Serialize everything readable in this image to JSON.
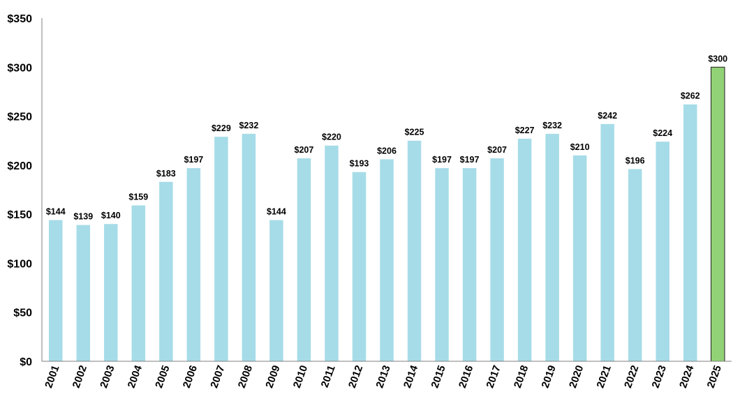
{
  "chart_data": {
    "type": "bar",
    "title": "",
    "xlabel": "",
    "ylabel": "",
    "ylim": [
      0,
      350
    ],
    "yticks": [
      0,
      50,
      100,
      150,
      200,
      250,
      300,
      350
    ],
    "ytick_labels": [
      "$0",
      "$50",
      "$100",
      "$150",
      "$200",
      "$250",
      "$300",
      "$350"
    ],
    "grid": false,
    "categories": [
      "2001",
      "2002",
      "2003",
      "2004",
      "2005",
      "2006",
      "2007",
      "2008",
      "2009",
      "2010",
      "2011",
      "2012",
      "2013",
      "2014",
      "2015",
      "2016",
      "2017",
      "2018",
      "2019",
      "2020",
      "2021",
      "2022",
      "2023",
      "2024",
      "2025"
    ],
    "values": [
      144,
      139,
      140,
      159,
      183,
      197,
      229,
      232,
      144,
      207,
      220,
      193,
      206,
      225,
      197,
      197,
      207,
      227,
      232,
      210,
      242,
      196,
      224,
      262,
      300
    ],
    "data_labels": [
      "$144",
      "$139",
      "$140",
      "$159",
      "$183",
      "$197",
      "$229",
      "$232",
      "$144",
      "$207",
      "$220",
      "$193",
      "$206",
      "$225",
      "$197",
      "$197",
      "$207",
      "$227",
      "$232",
      "$210",
      "$242",
      "$196",
      "$224",
      "$262",
      "$300"
    ],
    "colors": {
      "bar": "#a6dce8",
      "highlight_bar": "#92d276",
      "highlight_border": "#1f1f1f",
      "axis": "#7f7f7f"
    },
    "highlight_index": 24
  }
}
